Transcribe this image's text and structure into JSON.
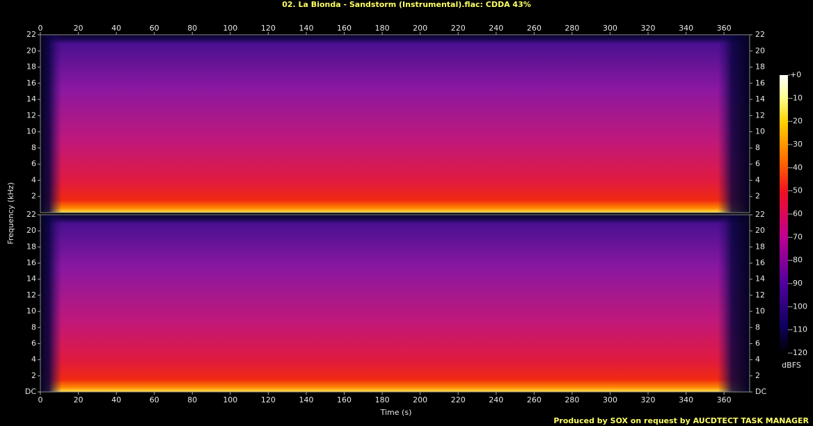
{
  "chart_data": {
    "type": "spectrogram",
    "title": "02. La Bionda - Sandstorm (Instrumental).flac: CDDA 43%",
    "xlabel": "Time (s)",
    "ylabel": "Frequency (kHz)",
    "xlim": [
      0,
      373.5
    ],
    "xticks": [
      0,
      20,
      40,
      60,
      80,
      100,
      120,
      140,
      160,
      180,
      200,
      220,
      240,
      260,
      280,
      300,
      320,
      340,
      360
    ],
    "channels": [
      {
        "ylim": [
          0,
          22
        ],
        "yticks": [
          2,
          4,
          6,
          8,
          10,
          12,
          14,
          16,
          18,
          20,
          22
        ]
      },
      {
        "ylim": [
          0,
          22
        ],
        "yticks": [
          {
            "value": 0,
            "label": "DC"
          },
          2,
          4,
          6,
          8,
          10,
          12,
          14,
          16,
          18,
          20,
          22
        ]
      }
    ],
    "colorbar": {
      "label": "dBFS",
      "lim": [
        -120,
        0
      ],
      "ticks": [
        {
          "value": 0,
          "label": "+0"
        },
        -10,
        -20,
        -30,
        -40,
        -50,
        -60,
        -70,
        -80,
        -90,
        -100,
        -110,
        -120
      ]
    }
  },
  "footer": "Produced by SOX on request by AUCDTECT TASK MANAGER"
}
